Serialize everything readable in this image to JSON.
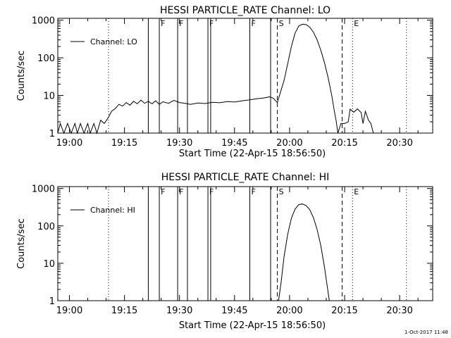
{
  "chart_data": [
    {
      "type": "line",
      "title": "HESSI PARTICLE_RATE Channel: LO",
      "xlabel": "Start Time (22-Apr-15 18:56:50)",
      "ylabel": "Counts/sec",
      "yscale": "log",
      "xlim": [
        "18:56:50",
        "20:39:00"
      ],
      "ylim": [
        1,
        1000
      ],
      "x_ticks": [
        "19:00",
        "19:15",
        "19:30",
        "19:45",
        "20:00",
        "20:15",
        "20:30"
      ],
      "y_ticks": [
        "1",
        "10",
        "100",
        "1000"
      ],
      "legend": {
        "placement": "top-left",
        "entries": [
          "Channel: LO"
        ]
      },
      "markers": [
        {
          "time": "19:10:40",
          "label": "",
          "style": "dotted"
        },
        {
          "time": "19:21:30",
          "label": "",
          "style": "solid"
        },
        {
          "time": "19:24:30",
          "label": "F",
          "style": "solid"
        },
        {
          "time": "19:29:30",
          "label": "F",
          "style": "solid"
        },
        {
          "time": "19:32:10",
          "label": "",
          "style": "solid"
        },
        {
          "time": "19:37:45",
          "label": "F",
          "style": "solid"
        },
        {
          "time": "19:38:30",
          "label": "",
          "style": "solid"
        },
        {
          "time": "19:49:10",
          "label": "F",
          "style": "solid"
        },
        {
          "time": "19:54:50",
          "label": "",
          "style": "solid"
        },
        {
          "time": "19:56:40",
          "label": "S",
          "style": "dashed"
        },
        {
          "time": "20:14:20",
          "label": "",
          "style": "dashed"
        },
        {
          "time": "20:17:10",
          "label": "E",
          "style": "dotted"
        },
        {
          "time": "20:31:50",
          "label": "",
          "style": "dotted"
        }
      ],
      "series": [
        {
          "name": "Channel: LO",
          "points": [
            [
              "18:56:50",
              1
            ],
            [
              "18:57:30",
              1.8
            ],
            [
              "18:58:30",
              1
            ],
            [
              "18:59:30",
              1.8
            ],
            [
              "19:00:30",
              1
            ],
            [
              "19:01:30",
              1.8
            ],
            [
              "19:02:10",
              1
            ],
            [
              "19:03:00",
              1.8
            ],
            [
              "19:04:00",
              1
            ],
            [
              "19:05:00",
              1.8
            ],
            [
              "19:05:40",
              1
            ],
            [
              "19:06:40",
              1.8
            ],
            [
              "19:07:30",
              1
            ],
            [
              "19:08:30",
              2.2
            ],
            [
              "19:09:30",
              1.8
            ],
            [
              "19:10:30",
              2.5
            ],
            [
              "19:11:30",
              3.8
            ],
            [
              "19:12:30",
              4.5
            ],
            [
              "19:13:30",
              5.8
            ],
            [
              "19:14:30",
              5.2
            ],
            [
              "19:15:30",
              6.5
            ],
            [
              "19:16:30",
              5.5
            ],
            [
              "19:17:30",
              7
            ],
            [
              "19:18:30",
              6
            ],
            [
              "19:19:30",
              7.5
            ],
            [
              "19:20:30",
              6.2
            ],
            [
              "19:21:30",
              7
            ],
            [
              "19:22:30",
              6
            ],
            [
              "19:23:30",
              7.2
            ],
            [
              "19:24:30",
              5.8
            ],
            [
              "19:25:30",
              6.8
            ],
            [
              "19:27:00",
              6.2
            ],
            [
              "19:28:30",
              7.4
            ],
            [
              "19:30:00",
              6.5
            ],
            [
              "19:31:30",
              6.2
            ],
            [
              "19:33:00",
              5.8
            ],
            [
              "19:35:00",
              6.3
            ],
            [
              "19:37:00",
              6.1
            ],
            [
              "19:39:00",
              6.6
            ],
            [
              "19:41:00",
              6.4
            ],
            [
              "19:43:00",
              6.9
            ],
            [
              "19:45:00",
              6.7
            ],
            [
              "19:47:00",
              7.2
            ],
            [
              "19:49:00",
              7.6
            ],
            [
              "19:51:00",
              8.2
            ],
            [
              "19:53:00",
              8.6
            ],
            [
              "19:54:30",
              9.2
            ],
            [
              "19:55:30",
              8.5
            ],
            [
              "19:56:40",
              6.5
            ],
            [
              "19:57:30",
              12
            ],
            [
              "19:58:30",
              25
            ],
            [
              "19:59:30",
              70
            ],
            [
              "20:00:30",
              200
            ],
            [
              "20:01:30",
              450
            ],
            [
              "20:02:30",
              700
            ],
            [
              "20:03:30",
              780
            ],
            [
              "20:04:30",
              760
            ],
            [
              "20:05:30",
              650
            ],
            [
              "20:06:30",
              480
            ],
            [
              "20:07:30",
              300
            ],
            [
              "20:08:30",
              160
            ],
            [
              "20:09:30",
              75
            ],
            [
              "20:10:30",
              30
            ],
            [
              "20:11:30",
              10
            ],
            [
              "20:12:10",
              4
            ],
            [
              "20:12:40",
              2.2
            ],
            [
              "20:13:10",
              1
            ],
            [
              "20:14:00",
              1.8
            ],
            [
              "20:15:00",
              1.8
            ],
            [
              "20:16:00",
              2
            ],
            [
              "20:16:30",
              4.3
            ],
            [
              "20:17:30",
              3.6
            ],
            [
              "20:18:30",
              4.4
            ],
            [
              "20:19:30",
              3.5
            ],
            [
              "20:20:00",
              1.8
            ],
            [
              "20:20:40",
              3.8
            ],
            [
              "20:21:30",
              2.2
            ],
            [
              "20:22:10",
              1.8
            ],
            [
              "20:22:50",
              1
            ]
          ]
        }
      ]
    },
    {
      "type": "line",
      "title": "HESSI PARTICLE_RATE Channel: HI",
      "xlabel": "Start Time (22-Apr-15 18:56:50)",
      "ylabel": "Counts/sec",
      "yscale": "log",
      "xlim": [
        "18:56:50",
        "20:39:00"
      ],
      "ylim": [
        1,
        1000
      ],
      "x_ticks": [
        "19:00",
        "19:15",
        "19:30",
        "19:45",
        "20:00",
        "20:15",
        "20:30"
      ],
      "y_ticks": [
        "1",
        "10",
        "100",
        "1000"
      ],
      "legend": {
        "placement": "top-left",
        "entries": [
          "Channel: HI"
        ]
      },
      "markers": [
        {
          "time": "19:10:40",
          "label": "",
          "style": "dotted"
        },
        {
          "time": "19:21:30",
          "label": "",
          "style": "solid"
        },
        {
          "time": "19:24:30",
          "label": "F",
          "style": "solid"
        },
        {
          "time": "19:29:30",
          "label": "F",
          "style": "solid"
        },
        {
          "time": "19:32:10",
          "label": "",
          "style": "solid"
        },
        {
          "time": "19:37:45",
          "label": "F",
          "style": "solid"
        },
        {
          "time": "19:38:30",
          "label": "",
          "style": "solid"
        },
        {
          "time": "19:49:10",
          "label": "F",
          "style": "solid"
        },
        {
          "time": "19:54:50",
          "label": "",
          "style": "solid"
        },
        {
          "time": "19:56:40",
          "label": "S",
          "style": "dashed"
        },
        {
          "time": "20:14:20",
          "label": "",
          "style": "dashed"
        },
        {
          "time": "20:17:10",
          "label": "E",
          "style": "dotted"
        },
        {
          "time": "20:31:50",
          "label": "",
          "style": "dotted"
        }
      ],
      "series": [
        {
          "name": "Channel: HI",
          "points": [
            [
              "19:57:00",
              1
            ],
            [
              "19:57:40",
              3
            ],
            [
              "19:58:30",
              15
            ],
            [
              "19:59:30",
              60
            ],
            [
              "20:00:30",
              160
            ],
            [
              "20:01:30",
              280
            ],
            [
              "20:02:30",
              370
            ],
            [
              "20:03:30",
              385
            ],
            [
              "20:04:30",
              350
            ],
            [
              "20:05:30",
              270
            ],
            [
              "20:06:30",
              165
            ],
            [
              "20:07:30",
              80
            ],
            [
              "20:08:30",
              30
            ],
            [
              "20:09:30",
              8
            ],
            [
              "20:10:20",
              2.2
            ],
            [
              "20:10:50",
              1
            ]
          ]
        }
      ]
    }
  ],
  "footer": {
    "timestamp": "1-Oct-2017 11:48"
  }
}
